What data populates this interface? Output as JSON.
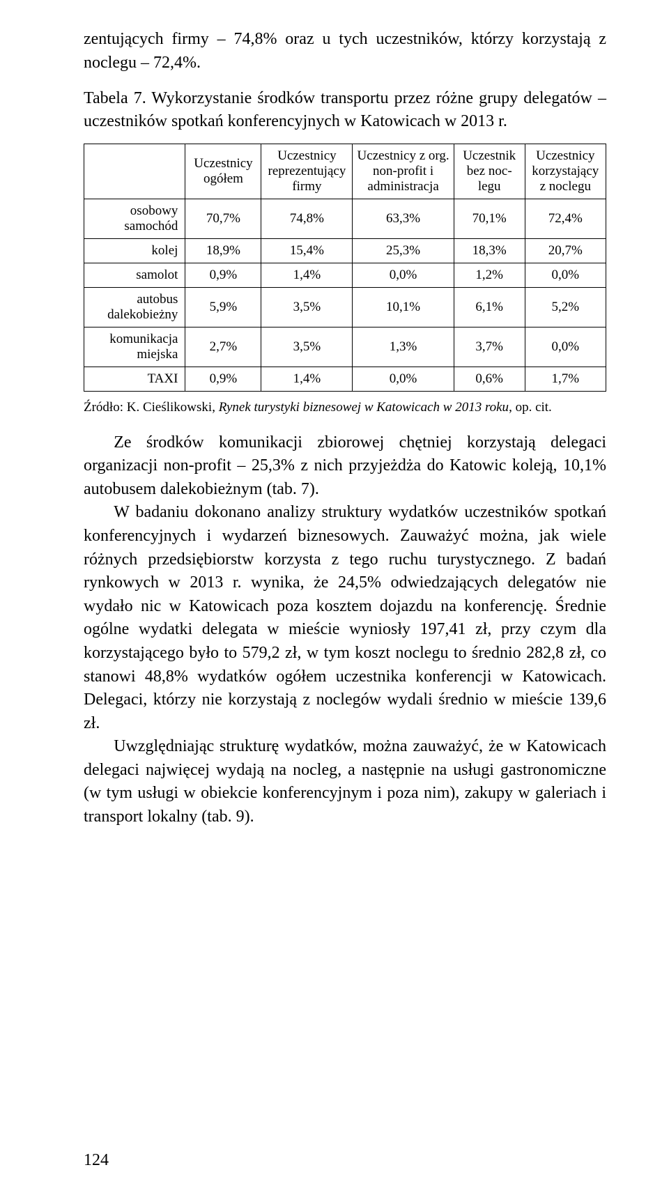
{
  "intro": {
    "line1": "zentujących firmy – 74,8% oraz u tych uczestników, którzy korzystają z noclegu – 72,4%."
  },
  "table": {
    "caption": "Tabela 7. Wykorzystanie środków transportu przez różne grupy delegatów – uczestników spotkań konferencyjnych w Katowicach w 2013 r.",
    "columns": [
      "",
      "Uczestnicy ogółem",
      "Uczestnicy reprezentu­jący firmy",
      "Uczestnicy z org. non-profit i administracja",
      "Uczestnik bez noc­legu",
      "Uczestnicy korzysta­jący z noclegu"
    ],
    "rows": [
      {
        "label": "osobowy samochód",
        "v": [
          "70,7%",
          "74,8%",
          "63,3%",
          "70,1%",
          "72,4%"
        ]
      },
      {
        "label": "kolej",
        "v": [
          "18,9%",
          "15,4%",
          "25,3%",
          "18,3%",
          "20,7%"
        ]
      },
      {
        "label": "samolot",
        "v": [
          "0,9%",
          "1,4%",
          "0,0%",
          "1,2%",
          "0,0%"
        ]
      },
      {
        "label": "autobus dalekobieżny",
        "v": [
          "5,9%",
          "3,5%",
          "10,1%",
          "6,1%",
          "5,2%"
        ]
      },
      {
        "label": "komunikacja miejska",
        "v": [
          "2,7%",
          "3,5%",
          "1,3%",
          "3,7%",
          "0,0%"
        ]
      },
      {
        "label": "TAXI",
        "v": [
          "0,9%",
          "1,4%",
          "0,0%",
          "0,6%",
          "1,7%"
        ]
      }
    ],
    "style": {
      "type": "table",
      "border_color": "#000000",
      "background_color": "#ffffff",
      "text_color": "#000000",
      "font_size": 19,
      "header_font_size": 19,
      "col_widths_pct": [
        20,
        15,
        18,
        20,
        14,
        16
      ],
      "label_align": "right",
      "value_align": "center",
      "header_align": "center"
    }
  },
  "source": {
    "prefix": "Źródło: K. Cieślikowski, ",
    "italic": "Rynek turystyki biznesowej w Katowicach w 2013 roku",
    "suffix": ", op. cit."
  },
  "body": {
    "p1": "Ze środków komunikacji zbiorowej chętniej korzystają delegaci organizacji non-profit – 25,3% z nich przyjeżdża do Katowic koleją, 10,1% autobusem dalekobieżnym (tab. 7).",
    "p2": "W badaniu dokonano analizy struktury wydatków uczestników spotkań konferencyjnych i wydarzeń biznesowych. Zauważyć można, jak wiele różnych przedsiębiorstw korzysta z tego ruchu turystyczne­go. Z badań rynkowych w 2013 r. wynika, że 24,5% odwiedzających delegatów nie wydało nic w Katowicach poza kosztem dojazdu na kon­ferencję. Średnie ogólne wydatki delegata w mieście  wyniosły 197,41 zł, przy czym dla korzystającego było to 579,2 zł, w tym koszt noclegu to średnio 282,8 zł, co stanowi 48,8% wydatków ogółem uczestnika konferencji w Katowicach. Delegaci, którzy nie korzystają z noclegów wydali średnio w mieście 139,6 zł.",
    "p3": "Uwzględniając strukturę wydatków, można zauważyć, że w Kato­wicach delegaci najwięcej wydają na nocleg, a następnie na usługi gastronomiczne (w tym usługi w obiekcie konferencyjnym i poza nim), zakupy w galeriach i transport lokalny (tab. 9)."
  },
  "page_number": "124"
}
